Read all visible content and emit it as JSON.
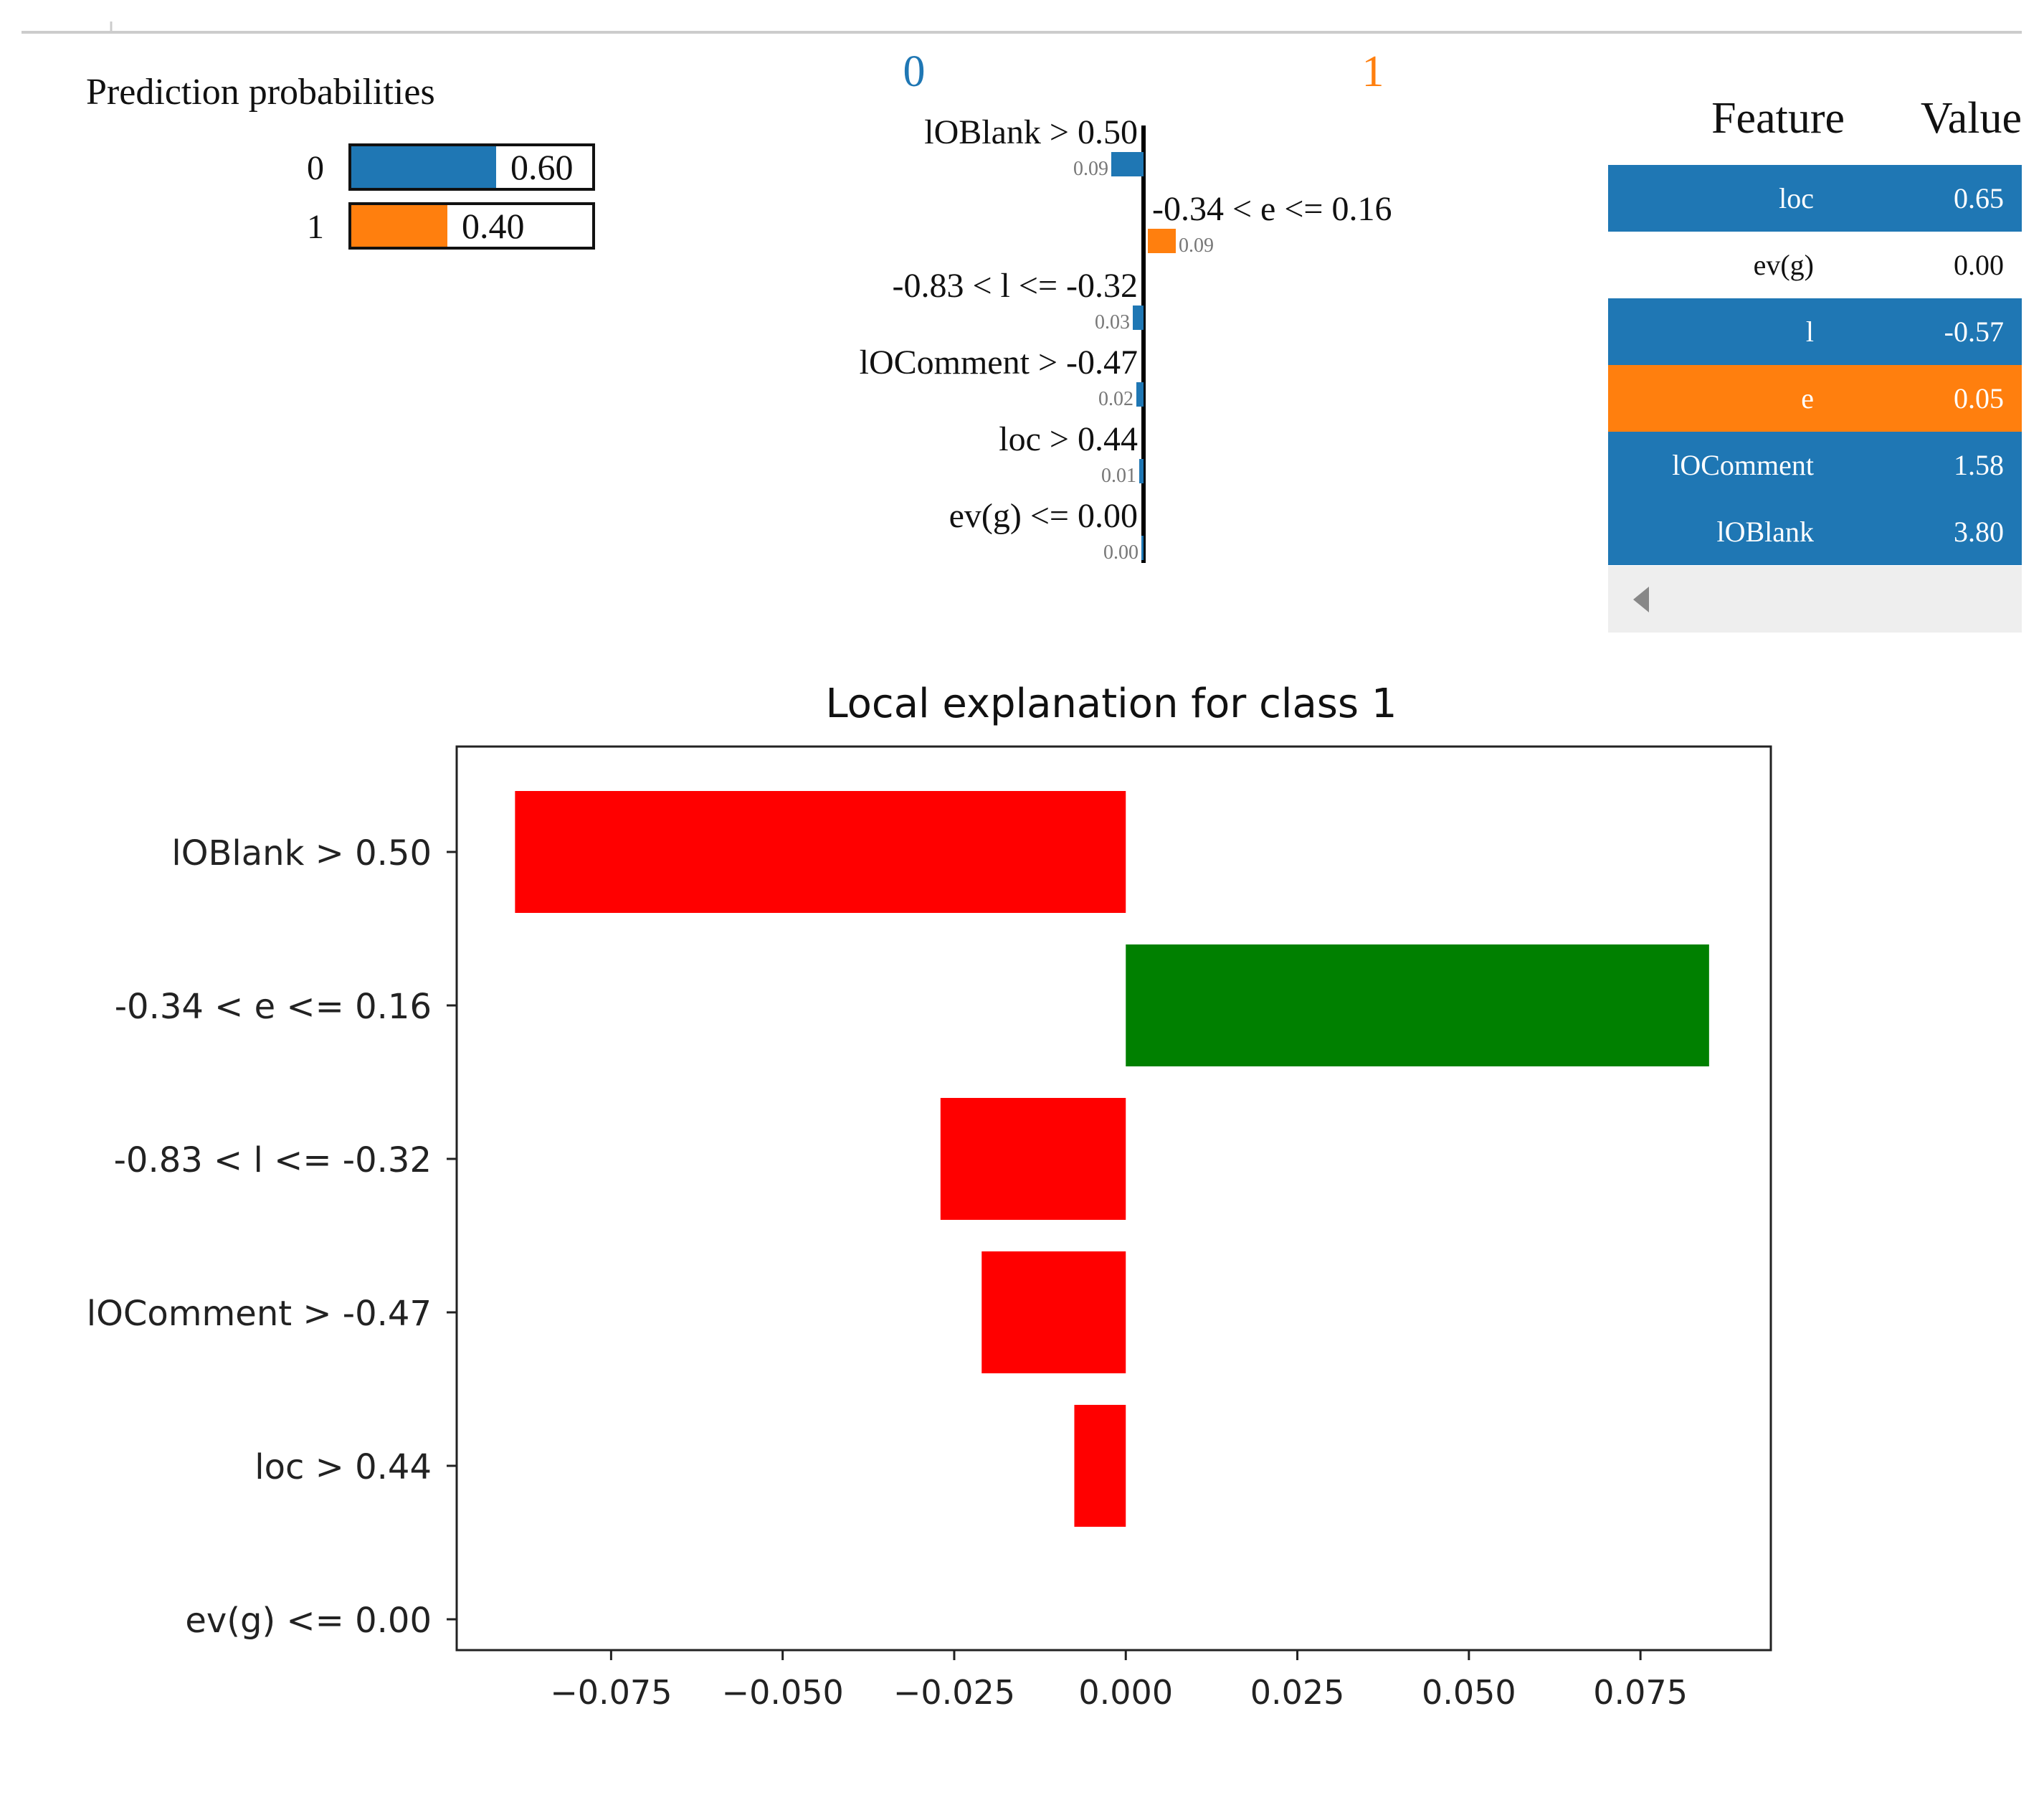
{
  "probabilities": {
    "title": "Prediction probabilities",
    "items": [
      {
        "label": "0",
        "value": 0.6,
        "value_text": "0.60",
        "color": "#1f77b4"
      },
      {
        "label": "1",
        "value": 0.4,
        "value_text": "0.40",
        "color": "#ff7f0e"
      }
    ]
  },
  "lime_bars": {
    "class_left": "0",
    "class_right": "1",
    "class_left_color": "#1f77b4",
    "class_right_color": "#ff7f0e",
    "items": [
      {
        "label": "lOBlank > 0.50",
        "weight": 0.09,
        "weight_text": "0.09",
        "side": "left"
      },
      {
        "label": "-0.34 < e <= 0.16",
        "weight": 0.09,
        "weight_text": "0.09",
        "side": "right"
      },
      {
        "label": "-0.83 < l <= -0.32",
        "weight": 0.03,
        "weight_text": "0.03",
        "side": "left"
      },
      {
        "label": "lOComment > -0.47",
        "weight": 0.02,
        "weight_text": "0.02",
        "side": "left"
      },
      {
        "label": "loc > 0.44",
        "weight": 0.01,
        "weight_text": "0.01",
        "side": "left"
      },
      {
        "label": "ev(g) <= 0.00",
        "weight": 0.0,
        "weight_text": "0.00",
        "side": "left"
      }
    ]
  },
  "feature_table": {
    "header_feature": "Feature",
    "header_value": "Value",
    "rows": [
      {
        "feature": "loc",
        "value": "0.65",
        "style": "blue"
      },
      {
        "feature": "ev(g)",
        "value": "0.00",
        "style": "plain"
      },
      {
        "feature": "l",
        "value": "-0.57",
        "style": "blue"
      },
      {
        "feature": "e",
        "value": "0.05",
        "style": "orange"
      },
      {
        "feature": "lOComment",
        "value": "1.58",
        "style": "blue"
      },
      {
        "feature": "lOBlank",
        "value": "3.80",
        "style": "blue"
      }
    ],
    "blue": "#1f77b4",
    "orange": "#ff7f0e"
  },
  "chart_data": {
    "type": "bar",
    "orientation": "horizontal",
    "title": "Local explanation for class 1",
    "categories": [
      "lOBlank > 0.50",
      "-0.34 < e <= 0.16",
      "-0.83 < l <= -0.32",
      "lOComment > -0.47",
      "loc > 0.44",
      "ev(g) <= 0.00"
    ],
    "values": [
      -0.089,
      0.085,
      -0.027,
      -0.021,
      -0.0075,
      0.0
    ],
    "xticks": [
      -0.075,
      -0.05,
      -0.025,
      0.0,
      0.025,
      0.05,
      0.075
    ],
    "xtick_labels": [
      "−0.075",
      "−0.050",
      "−0.025",
      "0.000",
      "0.025",
      "0.050",
      "0.075"
    ],
    "xlim": [
      -0.0975,
      0.094
    ],
    "positive_color": "#008000",
    "negative_color": "#ff0000"
  }
}
